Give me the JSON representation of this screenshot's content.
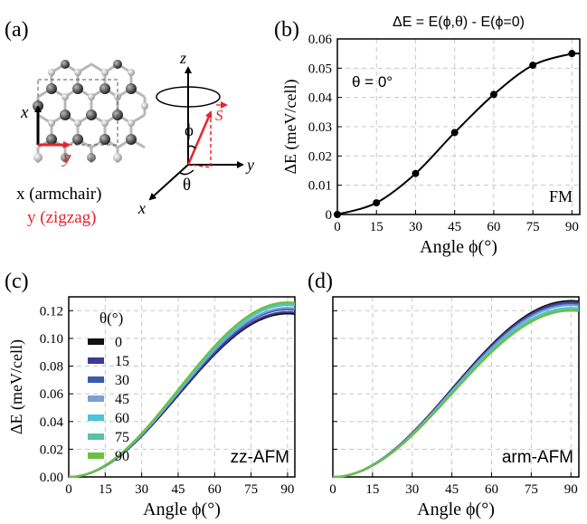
{
  "panels": {
    "a": {
      "label": "(a)",
      "x_axis_letter": "x",
      "y_axis_letter": "y",
      "x_caption": "x (armchair)",
      "y_caption": "y (zigzag)",
      "coord_z": "z",
      "coord_y": "y",
      "coord_x": "x",
      "phi_symbol": "ϕ",
      "theta_symbol": "θ",
      "spin_symbol": "S",
      "colors": {
        "red": "#e8232a"
      }
    },
    "b": {
      "label": "(b)"
    },
    "c": {
      "label": "(c)"
    },
    "d": {
      "label": "(d)"
    }
  },
  "chart_data": [
    {
      "panel": "b",
      "type": "line",
      "title": "ΔE = E(ϕ,θ) - E(ϕ=0)",
      "xlabel": "Angle ϕ(°)",
      "ylabel": "ΔE  (meV/cell)",
      "annotation": "θ = 0°",
      "corner_label": "FM",
      "xlim": [
        0,
        93
      ],
      "ylim": [
        0,
        0.06
      ],
      "x_ticks": [
        0,
        15,
        30,
        45,
        60,
        75,
        90
      ],
      "y_ticks": [
        0,
        0.01,
        0.02,
        0.03,
        0.04,
        0.05,
        0.06
      ],
      "y_tick_labels": [
        "0",
        "0.01",
        "0.02",
        "0.03",
        "0.04",
        "0.05",
        "0.06"
      ],
      "grid": true,
      "series": [
        {
          "color": "#000000",
          "markers": true,
          "x": [
            0,
            15,
            30,
            45,
            60,
            75,
            90
          ],
          "y": [
            0.0,
            0.004,
            0.014,
            0.028,
            0.041,
            0.051,
            0.055
          ]
        }
      ]
    },
    {
      "panel": "c",
      "type": "line",
      "xlabel": "Angle ϕ(°)",
      "ylabel": "ΔE  (meV/cell)",
      "corner_label": "zz-AFM",
      "legend_title": "θ(°)",
      "legend_position": "upper-left",
      "xlim": [
        0,
        93
      ],
      "ylim": [
        0,
        0.13
      ],
      "x_ticks": [
        0,
        15,
        30,
        45,
        60,
        75,
        90
      ],
      "y_ticks": [
        0,
        0.02,
        0.04,
        0.06,
        0.08,
        0.1,
        0.12
      ],
      "y_tick_labels": [
        "0.00",
        "0.02",
        "0.04",
        "0.06",
        "0.08",
        "0.10",
        "0.12"
      ],
      "grid": true,
      "series": [
        {
          "name": "0",
          "color": "#111111",
          "amplitude": 0.118
        },
        {
          "name": "15",
          "color": "#3c3c96",
          "amplitude": 0.119
        },
        {
          "name": "30",
          "color": "#3a5aaa",
          "amplitude": 0.121
        },
        {
          "name": "45",
          "color": "#7aa0d4",
          "amplitude": 0.122
        },
        {
          "name": "60",
          "color": "#4cc4d8",
          "amplitude": 0.124
        },
        {
          "name": "75",
          "color": "#5cc0a8",
          "amplitude": 0.125
        },
        {
          "name": "90",
          "color": "#6cc040",
          "amplitude": 0.126
        }
      ]
    },
    {
      "panel": "d",
      "type": "line",
      "xlabel": "Angle ϕ(°)",
      "corner_label": "arm-AFM",
      "xlim": [
        0,
        93
      ],
      "ylim": [
        0,
        0.13
      ],
      "x_ticks": [
        0,
        15,
        30,
        45,
        60,
        75,
        90
      ],
      "y_ticks": [
        0,
        0.02,
        0.04,
        0.06,
        0.08,
        0.1,
        0.12
      ],
      "grid": true,
      "series": [
        {
          "name": "0",
          "color": "#111111",
          "amplitude": 0.127
        },
        {
          "name": "15",
          "color": "#3c3c96",
          "amplitude": 0.126
        },
        {
          "name": "30",
          "color": "#3a5aaa",
          "amplitude": 0.125
        },
        {
          "name": "45",
          "color": "#7aa0d4",
          "amplitude": 0.124
        },
        {
          "name": "60",
          "color": "#4cc4d8",
          "amplitude": 0.122
        },
        {
          "name": "75",
          "color": "#5cc0a8",
          "amplitude": 0.121
        },
        {
          "name": "90",
          "color": "#6cc040",
          "amplitude": 0.12
        }
      ]
    }
  ]
}
